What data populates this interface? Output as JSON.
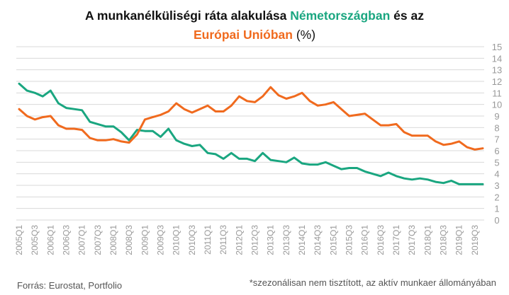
{
  "title": {
    "part1": "A munkanélküliségi ráta alakulása ",
    "germany": "Németországban",
    "part2": " és az ",
    "eu": "Európai Unióban",
    "part3": " (%)"
  },
  "footer": {
    "source": "Forrás: Eurostat, Portfolio",
    "note": "*szezonálisan nem tisztított, az aktív munkaer állományában"
  },
  "colors": {
    "germany": "#1aa680",
    "eu": "#f06a1e",
    "grid": "#d9d9d9",
    "tick": "#999999"
  },
  "chart_data": {
    "type": "line",
    "title": "A munkanélküliségi ráta alakulása Németországban és az Európai Unióban (%)",
    "ylim": [
      0,
      15
    ],
    "y_ticks": [
      0,
      1,
      2,
      3,
      4,
      5,
      6,
      7,
      8,
      9,
      10,
      11,
      12,
      13,
      14,
      15
    ],
    "y_axis_side": "right",
    "grid": "horizontal",
    "x_tick_labels": [
      "2005Q1",
      "2005Q3",
      "2006Q1",
      "2006Q3",
      "2007Q1",
      "2007Q3",
      "2008Q1",
      "2008Q3",
      "2009Q1",
      "2009Q3",
      "2010Q1",
      "2010Q3",
      "2011Q1",
      "2011Q3",
      "2012Q1",
      "2012Q3",
      "2013Q1",
      "2013Q3",
      "2014Q1",
      "2014Q3",
      "2015Q1",
      "2015Q3",
      "2016Q1",
      "2016Q3",
      "2017Q1",
      "2017Q3",
      "2018Q1",
      "2018Q3",
      "2019Q1",
      "2019Q3"
    ],
    "categories": [
      "2005Q1",
      "2005Q2",
      "2005Q3",
      "2005Q4",
      "2006Q1",
      "2006Q2",
      "2006Q3",
      "2006Q4",
      "2007Q1",
      "2007Q2",
      "2007Q3",
      "2007Q4",
      "2008Q1",
      "2008Q2",
      "2008Q3",
      "2008Q4",
      "2009Q1",
      "2009Q2",
      "2009Q3",
      "2009Q4",
      "2010Q1",
      "2010Q2",
      "2010Q3",
      "2010Q4",
      "2011Q1",
      "2011Q2",
      "2011Q3",
      "2011Q4",
      "2012Q1",
      "2012Q2",
      "2012Q3",
      "2012Q4",
      "2013Q1",
      "2013Q2",
      "2013Q3",
      "2013Q4",
      "2014Q1",
      "2014Q2",
      "2014Q3",
      "2014Q4",
      "2015Q1",
      "2015Q2",
      "2015Q3",
      "2015Q4",
      "2016Q1",
      "2016Q2",
      "2016Q3",
      "2016Q4",
      "2017Q1",
      "2017Q2",
      "2017Q3",
      "2017Q4",
      "2018Q1",
      "2018Q2",
      "2018Q3",
      "2018Q4",
      "2019Q1",
      "2019Q2",
      "2019Q3",
      "2019Q4"
    ],
    "series": [
      {
        "key": "germany",
        "values": [
          11.8,
          11.2,
          11.0,
          10.7,
          11.2,
          10.1,
          9.7,
          9.6,
          9.5,
          8.5,
          8.3,
          8.1,
          8.1,
          7.6,
          6.9,
          7.8,
          7.7,
          7.7,
          7.2,
          7.9,
          6.9,
          6.6,
          6.4,
          6.5,
          5.8,
          5.7,
          5.3,
          5.8,
          5.3,
          5.3,
          5.1,
          5.8,
          5.2,
          5.1,
          5.0,
          5.4,
          4.9,
          4.8,
          4.8,
          5.0,
          4.7,
          4.4,
          4.5,
          4.5,
          4.2,
          4.0,
          3.8,
          4.1,
          3.8,
          3.6,
          3.5,
          3.6,
          3.5,
          3.3,
          3.2,
          3.4,
          3.1,
          3.1,
          3.1,
          3.1
        ]
      },
      {
        "key": "eu",
        "values": [
          9.6,
          9.0,
          8.7,
          8.9,
          9.0,
          8.2,
          7.9,
          7.9,
          7.8,
          7.1,
          6.9,
          6.9,
          7.0,
          6.8,
          6.7,
          7.4,
          8.7,
          8.9,
          9.1,
          9.4,
          10.1,
          9.6,
          9.3,
          9.6,
          9.9,
          9.4,
          9.4,
          9.9,
          10.7,
          10.3,
          10.2,
          10.7,
          11.5,
          10.8,
          10.5,
          10.7,
          11.0,
          10.3,
          9.9,
          10.0,
          10.2,
          9.6,
          9.0,
          9.1,
          9.2,
          8.7,
          8.2,
          8.2,
          8.3,
          7.6,
          7.3,
          7.3,
          7.3,
          6.8,
          6.5,
          6.6,
          6.8,
          6.3,
          6.1,
          6.2
        ]
      }
    ]
  }
}
